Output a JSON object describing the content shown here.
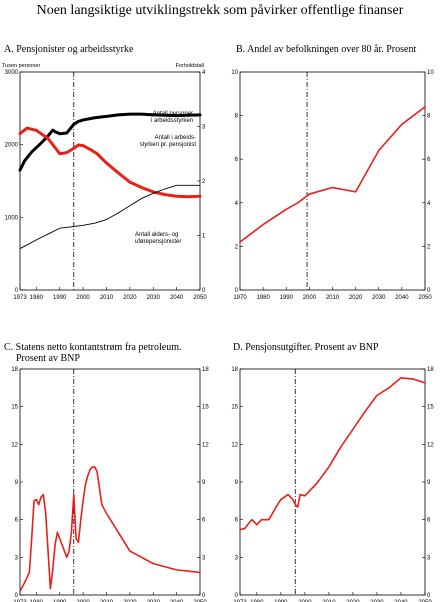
{
  "page": {
    "title": "Noen langsiktige utviklingstrekk som påvirker offentlige finanser"
  },
  "chart_data": [
    {
      "id": "A",
      "type": "line",
      "title": "A.   Pensjonister og arbeidsstyrke",
      "left_axis_label": "Tusen personer",
      "right_axis_label": "Forholdstall",
      "xlim": [
        1973,
        2050
      ],
      "ylim": [
        0,
        3000
      ],
      "y2lim": [
        0,
        4
      ],
      "x_ticks": [
        "1973",
        "1980",
        "1990",
        "2000",
        "2010",
        "2020",
        "2030",
        "2040",
        "2050"
      ],
      "x_tick_values": [
        1973,
        1980,
        1990,
        2000,
        2010,
        2020,
        2030,
        2040,
        2050
      ],
      "y_ticks": [
        "0",
        "1000",
        "2000",
        "3000"
      ],
      "y_tick_values": [
        0,
        1000,
        2000,
        3000
      ],
      "y2_ticks": [
        "0",
        "1",
        "2",
        "3",
        "4"
      ],
      "y2_tick_values": [
        0,
        1,
        2,
        3,
        4
      ],
      "vline_x": 1996,
      "series": [
        {
          "name": "Antall personer i arbeidsstyrken",
          "label_lines": [
            "Antall personer",
            "i arbeidsstyrken"
          ],
          "axis": "left",
          "color": "#000000",
          "weight": "thick",
          "x": [
            1973,
            1975,
            1978,
            1982,
            1985,
            1987,
            1988,
            1990,
            1993,
            1995,
            1996,
            1998,
            2000,
            2005,
            2010,
            2015,
            2020,
            2025,
            2030,
            2040,
            2050
          ],
          "y": [
            1650,
            1780,
            1900,
            2020,
            2120,
            2200,
            2180,
            2150,
            2160,
            2240,
            2280,
            2320,
            2340,
            2370,
            2390,
            2410,
            2420,
            2420,
            2410,
            2400,
            2410
          ]
        },
        {
          "name": "Antall i arbeidsstyrken pr. pensjonist",
          "label_lines": [
            "Antall i arbeids-",
            "styrken pr. pensjonist"
          ],
          "axis": "right",
          "color": "#e8201a",
          "weight": "thick",
          "x": [
            1973,
            1976,
            1980,
            1985,
            1990,
            1993,
            1996,
            1998,
            2000,
            2003,
            2006,
            2010,
            2015,
            2020,
            2025,
            2030,
            2035,
            2040,
            2045,
            2050
          ],
          "y": [
            2.87,
            2.97,
            2.93,
            2.78,
            2.5,
            2.52,
            2.6,
            2.66,
            2.65,
            2.58,
            2.5,
            2.33,
            2.15,
            1.98,
            1.88,
            1.8,
            1.75,
            1.72,
            1.71,
            1.72
          ]
        },
        {
          "name": "Antall alders- og uførepensjonister",
          "label_lines": [
            "Antall alders- og",
            "uførepensjonister"
          ],
          "axis": "left",
          "color": "#000000",
          "weight": "thin",
          "x": [
            1973,
            1976,
            1980,
            1985,
            1990,
            1995,
            2000,
            2005,
            2010,
            2015,
            2020,
            2025,
            2030,
            2035,
            2040,
            2045,
            2050
          ],
          "y": [
            570,
            620,
            690,
            770,
            850,
            870,
            890,
            920,
            970,
            1060,
            1160,
            1260,
            1330,
            1390,
            1440,
            1440,
            1440
          ]
        }
      ]
    },
    {
      "id": "B",
      "type": "line",
      "title": "B.  Andel av befolkningen over 80 år. Prosent",
      "xlim": [
        1970,
        2050
      ],
      "ylim": [
        0,
        10
      ],
      "x_ticks": [
        "1970",
        "1980",
        "1990",
        "2000",
        "2010",
        "2020",
        "2030",
        "2040",
        "2050"
      ],
      "x_tick_values": [
        1970,
        1980,
        1990,
        2000,
        2010,
        2020,
        2030,
        2040,
        2050
      ],
      "y_ticks": [
        "0",
        "2",
        "4",
        "6",
        "8",
        "10"
      ],
      "y_tick_values": [
        0,
        2,
        4,
        6,
        8,
        10
      ],
      "vline_x": 1999,
      "series": [
        {
          "name": "",
          "color": "#e8201a",
          "x": [
            1970,
            1975,
            1980,
            1990,
            1995,
            2000,
            2010,
            2020,
            2030,
            2040,
            2050
          ],
          "y": [
            2.2,
            2.6,
            3.0,
            3.7,
            4.0,
            4.4,
            4.7,
            4.5,
            6.4,
            7.6,
            8.4
          ]
        }
      ]
    },
    {
      "id": "C",
      "type": "line",
      "title_lines": [
        "C.  Statens netto kontantstrøm fra petroleum.",
        "Prosent av BNP"
      ],
      "xlim": [
        1973,
        2050
      ],
      "ylim": [
        0,
        18
      ],
      "x_ticks": [
        "1973",
        "1980",
        "1990",
        "2000",
        "2010",
        "2020",
        "2030",
        "2040",
        "2050"
      ],
      "x_tick_values": [
        1973,
        1980,
        1990,
        2000,
        2010,
        2020,
        2030,
        2040,
        2050
      ],
      "y_ticks": [
        "0",
        "3",
        "6",
        "9",
        "12",
        "15",
        "18"
      ],
      "y_tick_values": [
        0,
        3,
        6,
        9,
        12,
        15,
        18
      ],
      "vline_x": 1996,
      "series": [
        {
          "name": "",
          "color": "#e8201a",
          "x": [
            1973,
            1975,
            1977,
            1978,
            1979,
            1980,
            1981,
            1982,
            1983,
            1984,
            1985,
            1986,
            1987,
            1988,
            1989,
            1990,
            1991,
            1992,
            1993,
            1994,
            1995,
            1996,
            1997,
            1998,
            1999,
            2000,
            2001,
            2002,
            2003,
            2004,
            2005,
            2006,
            2008,
            2010,
            2015,
            2020,
            2030,
            2040,
            2050
          ],
          "y": [
            0.3,
            1.0,
            1.8,
            4.5,
            7.5,
            7.6,
            7.2,
            7.8,
            8.0,
            6.5,
            3.5,
            0.5,
            2.0,
            4.0,
            5.0,
            4.5,
            4.0,
            3.5,
            3.0,
            3.5,
            5.0,
            8.0,
            4.5,
            4.2,
            6.0,
            7.5,
            8.8,
            9.5,
            10.0,
            10.2,
            10.2,
            9.8,
            7.2,
            6.5,
            5.0,
            3.5,
            2.5,
            2.0,
            1.8
          ]
        }
      ]
    },
    {
      "id": "D",
      "type": "line",
      "title": "D.  Pensjonsutgifter. Prosent av BNP",
      "xlim": [
        1973,
        2050
      ],
      "ylim": [
        0,
        18
      ],
      "x_ticks": [
        "1973",
        "1980",
        "1990",
        "2000",
        "2010",
        "2020",
        "2030",
        "2040",
        "2050"
      ],
      "x_tick_values": [
        1973,
        1980,
        1990,
        2000,
        2010,
        2020,
        2030,
        2040,
        2050
      ],
      "y_ticks": [
        "0",
        "3",
        "6",
        "9",
        "12",
        "15",
        "18"
      ],
      "y_tick_values": [
        0,
        3,
        6,
        9,
        12,
        15,
        18
      ],
      "vline_x": 1996,
      "series": [
        {
          "name": "",
          "color": "#e8201a",
          "x": [
            1973,
            1975,
            1977,
            1978,
            1980,
            1982,
            1985,
            1988,
            1990,
            1993,
            1995,
            1996,
            1997,
            1998,
            2000,
            2005,
            2010,
            2015,
            2020,
            2025,
            2030,
            2035,
            2040,
            2045,
            2050
          ],
          "y": [
            5.2,
            5.3,
            5.8,
            6.0,
            5.6,
            6.0,
            6.0,
            7.0,
            7.6,
            8.0,
            7.6,
            7.2,
            7.0,
            8.0,
            7.9,
            8.9,
            10.2,
            11.8,
            13.2,
            14.6,
            15.9,
            16.5,
            17.3,
            17.2,
            16.9
          ]
        }
      ]
    }
  ]
}
